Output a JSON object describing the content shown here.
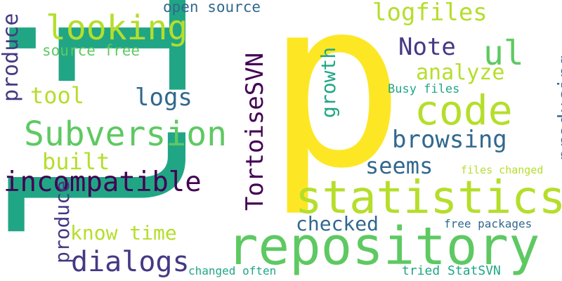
{
  "words": {
    "w1": "p",
    "w2": "repository",
    "w3": "statistics",
    "w4": "Subversion",
    "w5": "code",
    "w6": "incompatible",
    "w7": "TortoiseSVN",
    "w8": "looking",
    "w9": "ul",
    "w10": "dialogs",
    "w11": "logfiles",
    "w12": "browsing",
    "w13": "Note",
    "w14": "analyze",
    "w15": "logs",
    "w16": "seems",
    "w17": "built",
    "w18": "checked",
    "w19": "tool",
    "w20": "know time",
    "w21": "open source",
    "w22": "source free",
    "w23": "growth",
    "w24": "producing",
    "w25": "produce",
    "w26": "produce",
    "w27": "Busy files",
    "w28": "files changed",
    "w29": "free packages",
    "w30": "changed often",
    "w31": "tried StatSVN",
    "w32": "li"
  },
  "colors": {
    "yellow": "#fde725",
    "lime": "#b5de2b",
    "green": "#5ec962",
    "teal": "#21a685",
    "sea": "#1e9b8a",
    "blue": "#31688e",
    "indigo": "#443983",
    "purple": "#440154"
  }
}
